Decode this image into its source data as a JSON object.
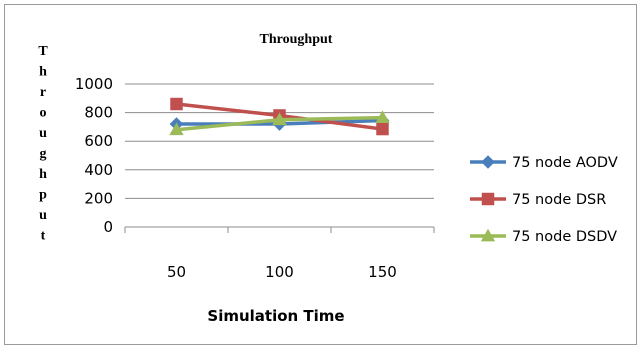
{
  "chart_data": {
    "type": "line",
    "title": "Throughput",
    "ylabel": "Throughput",
    "xlabel": "Simulation Time",
    "categories": [
      "50",
      "100",
      "150"
    ],
    "ylim": [
      0,
      1000
    ],
    "yticks": [
      0,
      200,
      400,
      600,
      800,
      1000
    ],
    "legend_position": "right",
    "grid": true,
    "series": [
      {
        "name": "75 node AODV",
        "values": [
          720,
          720,
          745
        ],
        "color": "#4a7ebb",
        "marker": "diamond"
      },
      {
        "name": "75 node DSR",
        "values": [
          860,
          780,
          685
        ],
        "color": "#c0504d",
        "marker": "square"
      },
      {
        "name": "75 node DSDV",
        "values": [
          680,
          750,
          765
        ],
        "color": "#9bbb59",
        "marker": "triangle"
      }
    ]
  }
}
